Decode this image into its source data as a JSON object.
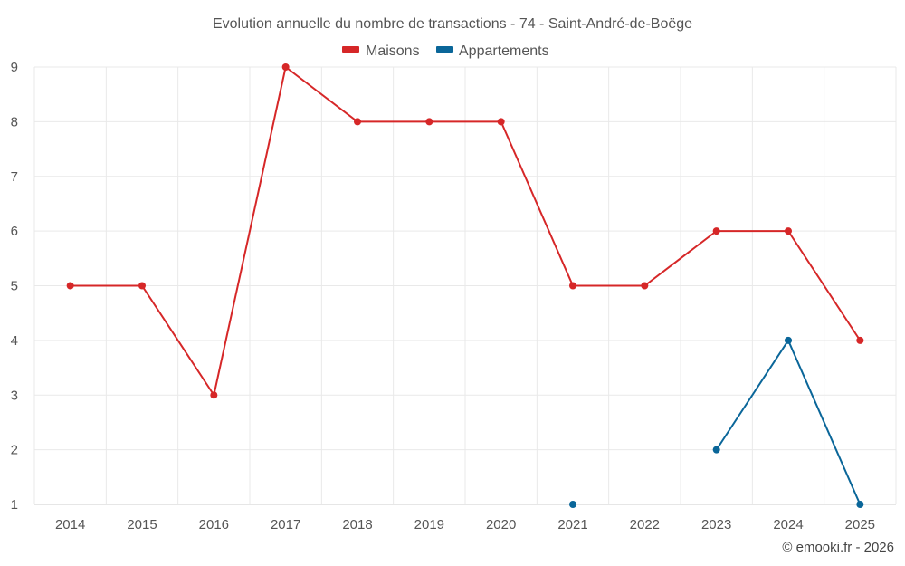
{
  "chart_data": {
    "type": "line",
    "title": "Evolution annuelle du nombre de transactions - 74 - Saint-André-de-Boëge",
    "xlabel": "",
    "ylabel": "",
    "categories": [
      "2014",
      "2015",
      "2016",
      "2017",
      "2018",
      "2019",
      "2020",
      "2021",
      "2022",
      "2023",
      "2024",
      "2025"
    ],
    "ylim": [
      1,
      9
    ],
    "yticks": [
      1,
      2,
      3,
      4,
      5,
      6,
      7,
      8,
      9
    ],
    "grid": true,
    "legend_position": "top-center",
    "series": [
      {
        "name": "Maisons",
        "color": "#d62728",
        "values": [
          5,
          5,
          3,
          9,
          8,
          8,
          8,
          5,
          5,
          6,
          6,
          4
        ]
      },
      {
        "name": "Appartements",
        "color": "#0a6699",
        "values": [
          null,
          null,
          null,
          null,
          null,
          null,
          null,
          1,
          null,
          2,
          4,
          1
        ]
      }
    ],
    "credit": "© emooki.fr - 2026"
  }
}
